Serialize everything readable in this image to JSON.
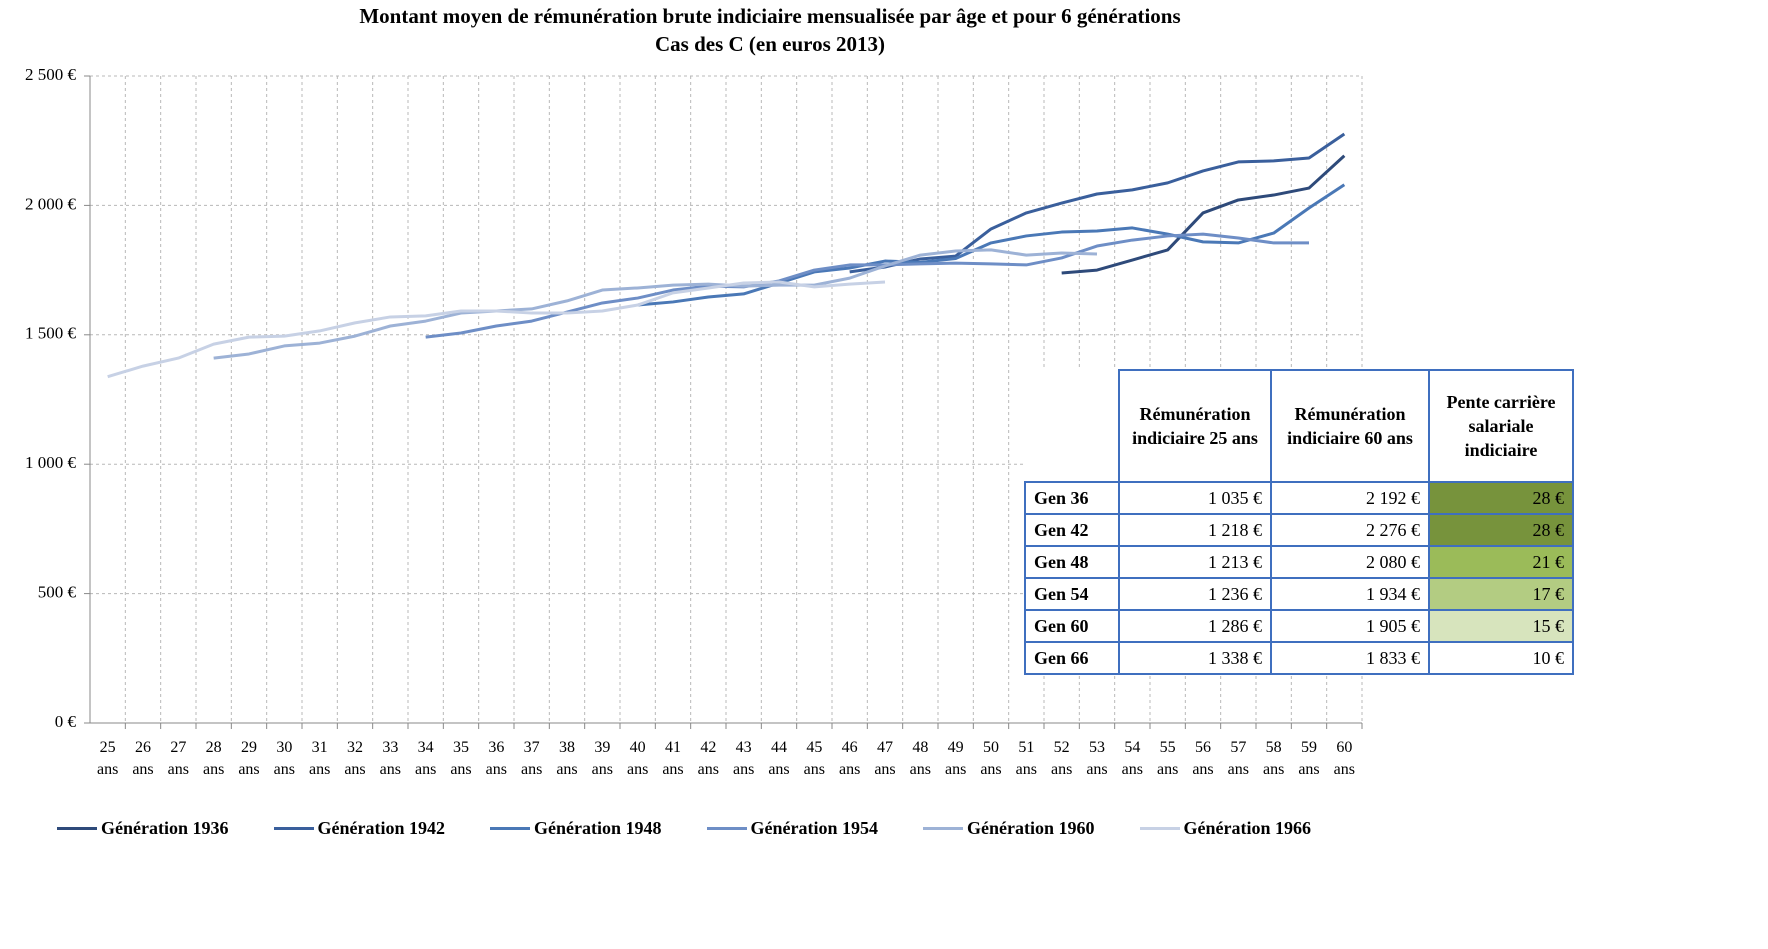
{
  "chart_data": {
    "type": "line",
    "title": "Montant moyen de rémunération brute indiciaire mensualisée par âge et pour 6 générations",
    "subtitle": "Cas des C (en euros 2013)",
    "categories": [
      "25 ans",
      "26 ans",
      "27 ans",
      "28 ans",
      "29 ans",
      "30 ans",
      "31 ans",
      "32 ans",
      "33 ans",
      "34 ans",
      "35 ans",
      "36 ans",
      "37 ans",
      "38 ans",
      "39 ans",
      "40 ans",
      "41 ans",
      "42 ans",
      "43 ans",
      "44 ans",
      "45 ans",
      "46 ans",
      "47 ans",
      "48 ans",
      "49 ans",
      "50 ans",
      "51 ans",
      "52 ans",
      "53 ans",
      "54 ans",
      "55 ans",
      "56 ans",
      "57 ans",
      "58 ans",
      "59 ans",
      "60 ans"
    ],
    "ylim": [
      0,
      2500
    ],
    "yticks": [
      {
        "value": 0,
        "label": "0 €"
      },
      {
        "value": 500,
        "label": "500 €"
      },
      {
        "value": 1000,
        "label": "1 000 €"
      },
      {
        "value": 1500,
        "label": "1 500 €"
      },
      {
        "value": 2000,
        "label": "2 000 €"
      },
      {
        "value": 2500,
        "label": "2 500 €"
      }
    ],
    "grid": true,
    "legend": "bottom",
    "series": [
      {
        "name": "Génération 1936",
        "color": "#2e4a7a",
        "values": [
          null,
          null,
          null,
          null,
          null,
          null,
          null,
          null,
          null,
          null,
          null,
          null,
          null,
          null,
          null,
          null,
          null,
          null,
          null,
          null,
          null,
          null,
          null,
          null,
          null,
          null,
          null,
          1739,
          1750,
          1789,
          1828,
          1971,
          2021,
          2040,
          2067,
          2192
        ]
      },
      {
        "name": "Génération 1942",
        "color": "#3a5f9c",
        "values": [
          null,
          null,
          null,
          null,
          null,
          null,
          null,
          null,
          null,
          null,
          null,
          null,
          null,
          null,
          null,
          null,
          null,
          null,
          null,
          null,
          null,
          1743,
          1762,
          1793,
          1804,
          1909,
          1971,
          2009,
          2044,
          2060,
          2087,
          2133,
          2168,
          2172,
          2183,
          2276
        ]
      },
      {
        "name": "Génération 1948",
        "color": "#4a78b6",
        "values": [
          null,
          null,
          null,
          null,
          null,
          null,
          null,
          null,
          null,
          null,
          null,
          null,
          null,
          null,
          null,
          1615,
          1627,
          1646,
          1658,
          1700,
          1743,
          1758,
          1785,
          1780,
          1795,
          1855,
          1882,
          1897,
          1901,
          1913,
          1889,
          1859,
          1855,
          1893,
          1990,
          2080
        ]
      },
      {
        "name": "Génération 1954",
        "color": "#6e8ec6",
        "values": [
          null,
          null,
          null,
          null,
          null,
          null,
          null,
          null,
          null,
          1491,
          1507,
          1534,
          1553,
          1588,
          1623,
          1642,
          1673,
          1688,
          1685,
          1708,
          1750,
          1770,
          1770,
          1774,
          1777,
          1774,
          1770,
          1797,
          1843,
          1866,
          1882,
          1889,
          1874,
          1855,
          1855,
          null
        ]
      },
      {
        "name": "Génération 1960",
        "color": "#9db2d6",
        "values": [
          null,
          null,
          null,
          1410,
          1426,
          1457,
          1468,
          1495,
          1534,
          1553,
          1584,
          1592,
          1600,
          1631,
          1673,
          1681,
          1692,
          1696,
          1688,
          1692,
          1692,
          1719,
          1766,
          1808,
          1824,
          1828,
          1808,
          1816,
          1812,
          null,
          null,
          null,
          null,
          null,
          null,
          null
        ]
      },
      {
        "name": "Génération 1966",
        "color": "#c7d1e5",
        "values": [
          1338,
          1379,
          1410,
          1464,
          1491,
          1495,
          1515,
          1546,
          1569,
          1573,
          1592,
          1592,
          1584,
          1584,
          1592,
          1615,
          1662,
          1681,
          1700,
          1704,
          1685,
          1696,
          1704,
          null,
          null,
          null,
          null,
          null,
          null,
          null,
          null,
          null,
          null,
          null,
          null,
          null
        ]
      }
    ]
  },
  "table": {
    "columns": [
      "Rémunération indiciaire 25 ans",
      "Rémunération indiciaire 60 ans",
      "Pente carrière salariale indiciaire"
    ],
    "rows": [
      [
        "Gen 36",
        "1 035 €",
        "2 192 €",
        "28 €"
      ],
      [
        "Gen 42",
        "1 218 €",
        "2 276 €",
        "28 €"
      ],
      [
        "Gen 48",
        "1 213 €",
        "2 080 €",
        "21 €"
      ],
      [
        "Gen 54",
        "1 236 €",
        "1 934 €",
        "17 €"
      ],
      [
        "Gen 60",
        "1 286 €",
        "1 905 €",
        "15 €"
      ],
      [
        "Gen 66",
        "1 338 €",
        "1 833 €",
        "10 €"
      ]
    ],
    "colors": [
      "#77933c",
      "#77933c",
      "#9bbb59",
      "#b3cc82",
      "#d7e4bd",
      "#ffffff"
    ]
  }
}
